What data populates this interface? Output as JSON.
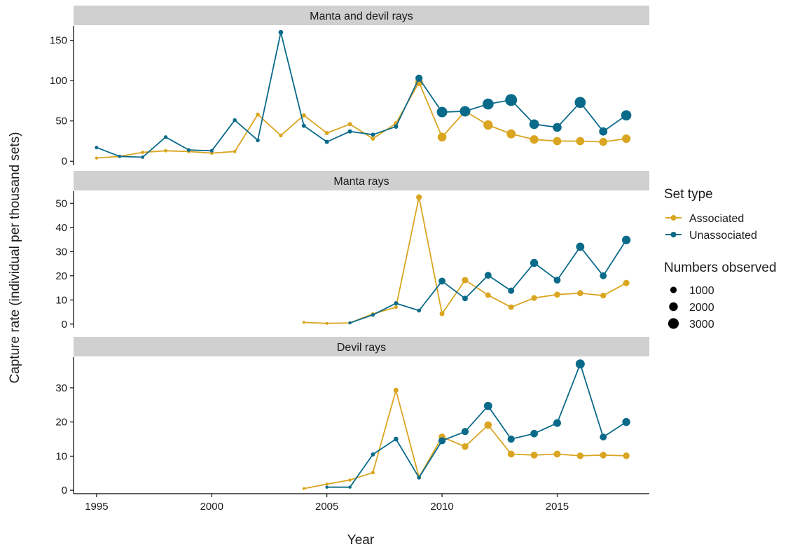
{
  "chart_data": {
    "type": "line",
    "xlabel": "Year",
    "ylabel": "Capture rate (individual per thousand sets)",
    "xlim": [
      1994,
      2019
    ],
    "xticks": [
      1995,
      2000,
      2005,
      2010,
      2015
    ],
    "grid": false,
    "colors": {
      "Associated": "#DAA520",
      "Unassociated": "#0A6A8A"
    },
    "legend": {
      "position": "right",
      "set_type_title": "Set type",
      "set_types": [
        "Associated",
        "Unassociated"
      ],
      "size_title": "Numbers observed",
      "sizes": [
        1000,
        2000,
        3000
      ]
    },
    "panels": [
      {
        "title": "Manta and devil rays",
        "ylim": [
          -5,
          168
        ],
        "yticks": [
          0,
          50,
          100,
          150
        ],
        "series": [
          {
            "name": "Associated",
            "x": [
              1995,
              1996,
              1997,
              1998,
              1999,
              2000,
              2001,
              2002,
              2003,
              2004,
              2005,
              2006,
              2007,
              2008,
              2009,
              2010,
              2011,
              2012,
              2013,
              2014,
              2015,
              2016,
              2017,
              2018
            ],
            "y": [
              4,
              6,
              11,
              13,
              12,
              10,
              12,
              58,
              32,
              57,
              35,
              46,
              28,
              47,
              98,
              30,
              62,
              45,
              34,
              27,
              25,
              25,
              24,
              28
            ],
            "n": [
              100,
              150,
              200,
              250,
              200,
              200,
              200,
              400,
              350,
              500,
              500,
              550,
              500,
              600,
              1800,
              2200,
              2300,
              2400,
              2300,
              2100,
              2000,
              2000,
              1900,
              2100
            ]
          },
          {
            "name": "Unassociated",
            "x": [
              1995,
              1996,
              1997,
              1998,
              1999,
              2000,
              2001,
              2002,
              2003,
              2004,
              2005,
              2006,
              2007,
              2008,
              2009,
              2010,
              2011,
              2012,
              2013,
              2014,
              2015,
              2016,
              2017,
              2018
            ],
            "y": [
              17,
              6,
              5,
              30,
              14,
              13,
              51,
              26,
              160,
              44,
              24,
              37,
              33,
              43,
              103,
              61,
              62,
              71,
              76,
              46,
              42,
              73,
              37,
              57
            ],
            "n": [
              300,
              200,
              200,
              300,
              300,
              300,
              400,
              400,
              700,
              500,
              500,
              550,
              500,
              600,
              1600,
              2800,
              2800,
              3000,
              3400,
              2500,
              2200,
              3000,
              2000,
              2700
            ]
          }
        ]
      },
      {
        "title": "Manta rays",
        "ylim": [
          -1.5,
          55
        ],
        "yticks": [
          0,
          10,
          20,
          30,
          40,
          50
        ],
        "series": [
          {
            "name": "Associated",
            "x": [
              2004,
              2005,
              2006,
              2007,
              2008,
              2009,
              2010,
              2011,
              2012,
              2013,
              2014,
              2015,
              2016,
              2017,
              2018
            ],
            "y": [
              0.7,
              0.3,
              0.5,
              4.2,
              7,
              52.5,
              4.3,
              18.2,
              12,
              7,
              10.8,
              12.2,
              12.8,
              11.8,
              17
            ],
            "n": [
              50,
              50,
              50,
              200,
              300,
              1100,
              800,
              1300,
              1000,
              1000,
              1100,
              1200,
              1200,
              1100,
              1300
            ]
          },
          {
            "name": "Unassociated",
            "x": [
              2006,
              2007,
              2008,
              2009,
              2010,
              2011,
              2012,
              2013,
              2014,
              2015,
              2016,
              2017,
              2018
            ],
            "y": [
              0.5,
              3.8,
              8.6,
              5.6,
              17.8,
              10.6,
              20.2,
              13.8,
              25.3,
              18.2,
              32,
              20,
              34.8
            ],
            "n": [
              100,
              300,
              500,
              400,
              1500,
              1000,
              1500,
              1300,
              1900,
              1500,
              2000,
              1500,
              2100
            ]
          }
        ]
      },
      {
        "title": "Devil rays",
        "ylim": [
          -1,
          39
        ],
        "yticks": [
          0,
          10,
          20,
          30
        ],
        "series": [
          {
            "name": "Associated",
            "x": [
              2004,
              2005,
              2006,
              2007,
              2008,
              2009,
              2010,
              2011,
              2012,
              2013,
              2014,
              2015,
              2016,
              2017,
              2018
            ],
            "y": [
              0.5,
              1.8,
              3,
              5.2,
              29.3,
              3.8,
              15.6,
              12.8,
              19.1,
              10.6,
              10.3,
              10.6,
              10.1,
              10.3,
              10.1
            ],
            "n": [
              50,
              100,
              150,
              300,
              800,
              500,
              1500,
              1400,
              1700,
              1500,
              1500,
              1500,
              1400,
              1400,
              1400
            ]
          },
          {
            "name": "Unassociated",
            "x": [
              2005,
              2006,
              2007,
              2008,
              2009,
              2010,
              2011,
              2012,
              2013,
              2014,
              2015,
              2016,
              2017,
              2018
            ],
            "y": [
              0.9,
              0.9,
              10.5,
              15,
              3.7,
              14.5,
              17.2,
              24.7,
              15,
              16.6,
              19.7,
              37,
              15.6,
              20
            ],
            "n": [
              100,
              100,
              500,
              700,
              400,
              1600,
              1600,
              2000,
              1600,
              1700,
              1800,
              2300,
              1500,
              1900
            ]
          }
        ]
      }
    ]
  }
}
